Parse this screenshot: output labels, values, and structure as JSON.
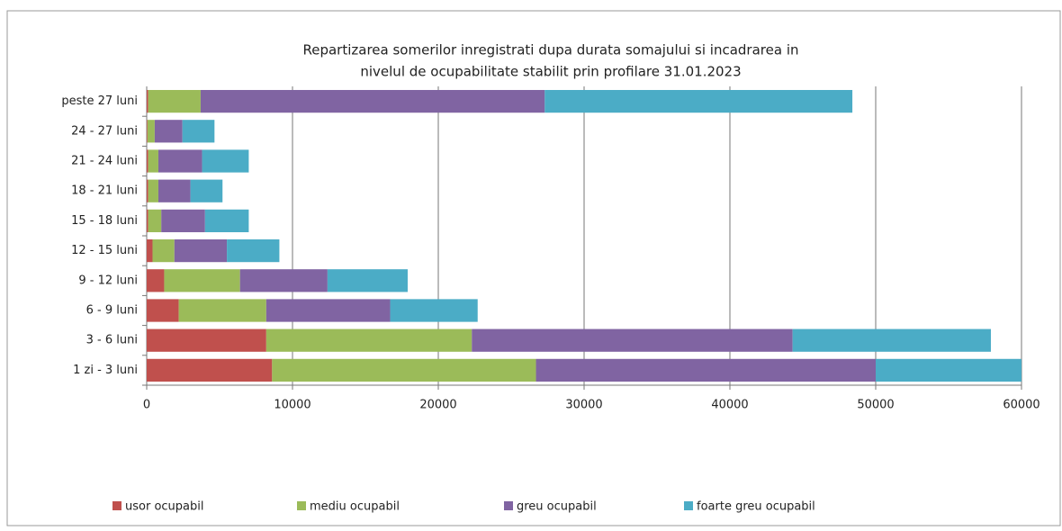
{
  "chart_data": {
    "type": "stacked-bar-horizontal",
    "title": [
      "Repartizarea somerilor inregistrati dupa  durata somajului si incadrarea in",
      "nivelul de ocupabilitate stabilit prin profilare 31.01.2023"
    ],
    "categories": [
      "1 zi - 3 luni",
      "3 - 6 luni",
      "6 - 9 luni",
      "9 - 12 luni",
      "12 - 15 luni",
      "15 - 18 luni",
      "18 - 21 luni",
      "21 - 24 luni",
      "24 - 27 luni",
      "peste 27 luni"
    ],
    "series": [
      {
        "name": "usor ocupabil",
        "color": "#c0504d",
        "values": [
          8600,
          8200,
          2200,
          1200,
          400,
          100,
          100,
          100,
          50,
          100
        ]
      },
      {
        "name": "mediu ocupabil",
        "color": "#9bbb59",
        "values": [
          18100,
          14100,
          6000,
          5200,
          1500,
          900,
          700,
          700,
          500,
          3600
        ]
      },
      {
        "name": "greu ocupabil",
        "color": "#8064a2",
        "values": [
          23300,
          22000,
          8500,
          6000,
          3600,
          3000,
          2200,
          3000,
          1900,
          23600
        ]
      },
      {
        "name": "foarte greu ocupabil",
        "color": "#4bacc6",
        "values": [
          10000,
          13600,
          6000,
          5500,
          3600,
          3000,
          2200,
          3200,
          2200,
          21100
        ]
      }
    ],
    "xlim": [
      0,
      60000
    ],
    "xticks": [
      0,
      10000,
      20000,
      30000,
      40000,
      50000,
      60000
    ],
    "grid": true,
    "legend": "bottom"
  }
}
